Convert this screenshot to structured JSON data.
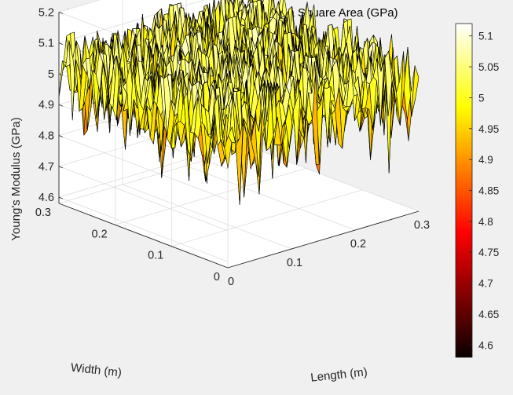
{
  "chart_data": {
    "type": "surface",
    "title": "Simulated Young's Modulus Distribution in a Square Area (GPa)",
    "xlabel": "Length (m)",
    "ylabel": "Width (m)",
    "zlabel": "Young's Modulus (GPa)",
    "xlim": [
      0,
      0.3
    ],
    "ylim": [
      0,
      0.3
    ],
    "zlim": [
      4.58,
      5.2
    ],
    "x_ticks": [
      "0",
      "0.1",
      "0.2",
      "0.3"
    ],
    "y_ticks": [
      "0",
      "0.1",
      "0.2",
      "0.3"
    ],
    "z_ticks": [
      "4.6",
      "4.7",
      "4.8",
      "4.9",
      "5",
      "5.1",
      "5.2"
    ],
    "colormap": "hot",
    "colorbar": {
      "range": [
        4.58,
        5.12
      ],
      "ticks": [
        "4.6",
        "4.65",
        "4.7",
        "4.75",
        "4.8",
        "4.85",
        "4.9",
        "4.95",
        "5",
        "5.05",
        "5.1"
      ]
    },
    "surface": {
      "grid_size": 51,
      "mean": 5.0,
      "std": 0.09,
      "min": 4.58,
      "max": 5.12
    },
    "grid": true
  }
}
